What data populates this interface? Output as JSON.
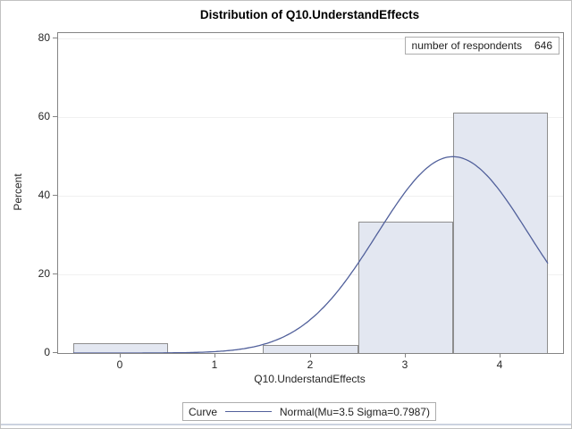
{
  "figure": {
    "title": "Distribution of Q10.UnderstandEffects"
  },
  "inset": {
    "label": "number of respondents",
    "value": "646"
  },
  "legend": {
    "label": "Curve",
    "entry": "Normal(Mu=3.5 Sigma=0.7987)"
  },
  "chart_data": {
    "type": "bar",
    "subtype": "histogram-with-normal-curve",
    "title": "Distribution of Q10.UnderstandEffects",
    "xlabel": "Q10.UnderstandEffects",
    "ylabel": "Percent",
    "categories": [
      0,
      1,
      2,
      3,
      4
    ],
    "values": [
      2.5,
      0,
      2.1,
      33.4,
      61.1
    ],
    "bin_width": 1,
    "x_ticks": [
      0,
      1,
      2,
      3,
      4
    ],
    "y_ticks": [
      0,
      20,
      40,
      60,
      80
    ],
    "xlim": [
      -0.66,
      4.66
    ],
    "ylim": [
      0,
      81.4
    ],
    "grid": true,
    "n_respondents": 646,
    "curve": {
      "type": "normal",
      "mu": 3.5,
      "sigma": 0.7987,
      "x_range": [
        -0.5,
        4.5
      ],
      "peak_percent": 50
    },
    "legend_position": "bottom-center",
    "colors": {
      "bar_fill": "#e3e7f1",
      "bar_edge": "#8e8e8e",
      "curve": "#51609b",
      "frame": "#848484",
      "grid": "#f0f0f0",
      "text": "#262626"
    }
  }
}
